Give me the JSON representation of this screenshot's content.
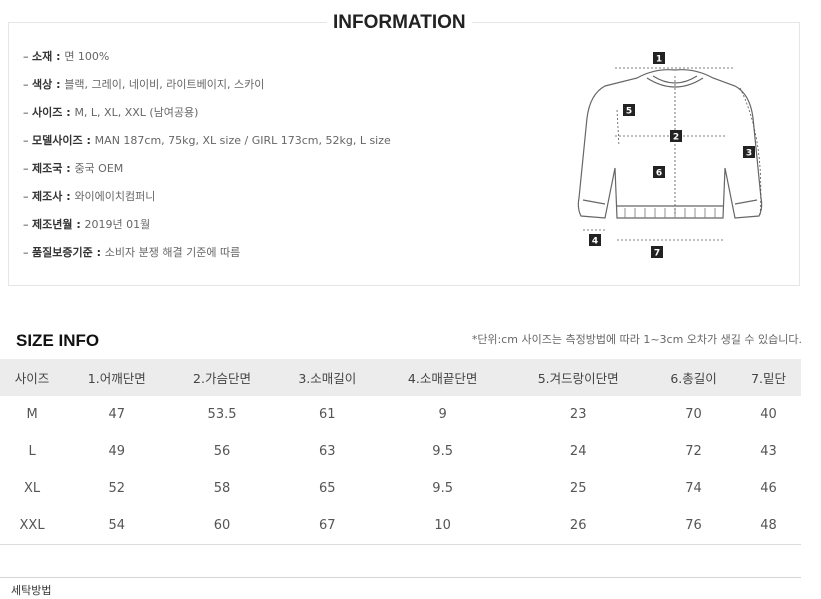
{
  "information": {
    "title": "INFORMATION",
    "specs": [
      {
        "key": "소재",
        "value": "면 100%"
      },
      {
        "key": "색상",
        "value": "블랙, 그레이, 네이비, 라이트베이지, 스카이"
      },
      {
        "key": "사이즈",
        "value": "M, L, XL, XXL (남여공용)"
      },
      {
        "key": "모델사이즈",
        "value": "MAN 187cm, 75kg, XL size / GIRL 173cm, 52kg, L size"
      },
      {
        "key": "제조국",
        "value": "중국 OEM"
      },
      {
        "key": "제조사",
        "value": "와이에이치컴퍼니"
      },
      {
        "key": "제조년월",
        "value": "2019년 01월"
      },
      {
        "key": "품질보증기준",
        "value": "소비자 분쟁 해결 기준에 따름"
      }
    ],
    "diagram_labels": [
      "1",
      "2",
      "3",
      "4",
      "5",
      "6",
      "7"
    ]
  },
  "size_info": {
    "title": "SIZE INFO",
    "note": "*단위:cm 사이즈는 측정방법에 따라 1~3cm 오차가 생길 수 있습니다.",
    "headers": [
      "사이즈",
      "1.어깨단면",
      "2.가슴단면",
      "3.소매길이",
      "4.소매끝단면",
      "5.겨드랑이단면",
      "6.총길이",
      "7.밑단"
    ],
    "rows": [
      [
        "M",
        "47",
        "53.5",
        "61",
        "9",
        "23",
        "70",
        "40"
      ],
      [
        "L",
        "49",
        "56",
        "63",
        "9.5",
        "24",
        "72",
        "43"
      ],
      [
        "XL",
        "52",
        "58",
        "65",
        "9.5",
        "25",
        "74",
        "46"
      ],
      [
        "XXL",
        "54",
        "60",
        "67",
        "10",
        "26",
        "76",
        "48"
      ]
    ]
  },
  "wash": {
    "title": "세탁방법"
  }
}
